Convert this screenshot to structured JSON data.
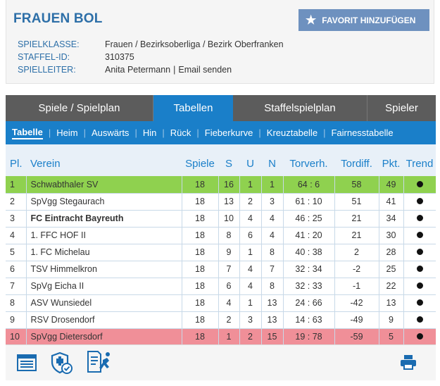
{
  "header": {
    "title": "FRAUEN BOL",
    "favorite_label": "FAVORIT HINZUFÜGEN",
    "favorite_icon": "star-icon",
    "meta": [
      {
        "key": "SPIELKLASSE:",
        "value": "Frauen / Bezirksoberliga / Bezirk Oberfranken"
      },
      {
        "key": "STAFFEL-ID:",
        "value": "310375"
      },
      {
        "key": "SPIELLEITER:",
        "value": "Anita Petermann",
        "separator": "|",
        "link": "Email senden"
      }
    ]
  },
  "tabs": [
    {
      "label": "Spiele / Spielplan",
      "active": false
    },
    {
      "label": "Tabellen",
      "active": true
    },
    {
      "label": "Staffelspielplan",
      "active": false
    },
    {
      "label": "Spieler",
      "active": false
    }
  ],
  "subnav": [
    {
      "label": "Tabelle",
      "active": true
    },
    {
      "label": "Heim"
    },
    {
      "label": "Auswärts"
    },
    {
      "label": "Hin"
    },
    {
      "label": "Rück"
    },
    {
      "label": "Fieberkurve"
    },
    {
      "label": "Kreuztabelle"
    },
    {
      "label": "Fairnesstabelle"
    }
  ],
  "subnav_divider": "|",
  "table": {
    "columns": [
      "Pl.",
      "Verein",
      "Spiele",
      "S",
      "U",
      "N",
      "Torverh.",
      "Tordiff.",
      "Pkt.",
      "Trend"
    ],
    "rows": [
      {
        "pl": "1",
        "club": "Schwabthaler SV",
        "games": "18",
        "s": "16",
        "u": "1",
        "n": "1",
        "goals": "64 : 6",
        "diff": "58",
        "pts": "49",
        "bold": false,
        "status": "top"
      },
      {
        "pl": "2",
        "club": "SpVgg Stegaurach",
        "games": "18",
        "s": "13",
        "u": "2",
        "n": "3",
        "goals": "61 : 10",
        "diff": "51",
        "pts": "41",
        "bold": false,
        "status": ""
      },
      {
        "pl": "3",
        "club": "FC Eintracht Bayreuth",
        "games": "18",
        "s": "10",
        "u": "4",
        "n": "4",
        "goals": "46 : 25",
        "diff": "21",
        "pts": "34",
        "bold": true,
        "status": ""
      },
      {
        "pl": "4",
        "club": "1. FFC HOF II",
        "games": "18",
        "s": "8",
        "u": "6",
        "n": "4",
        "goals": "41 : 20",
        "diff": "21",
        "pts": "30",
        "bold": false,
        "status": ""
      },
      {
        "pl": "5",
        "club": "1. FC Michelau",
        "games": "18",
        "s": "9",
        "u": "1",
        "n": "8",
        "goals": "40 : 38",
        "diff": "2",
        "pts": "28",
        "bold": false,
        "status": ""
      },
      {
        "pl": "6",
        "club": "TSV Himmelkron",
        "games": "18",
        "s": "7",
        "u": "4",
        "n": "7",
        "goals": "32 : 34",
        "diff": "-2",
        "pts": "25",
        "bold": false,
        "status": ""
      },
      {
        "pl": "7",
        "club": "SpVg Eicha II",
        "games": "18",
        "s": "6",
        "u": "4",
        "n": "8",
        "goals": "32 : 33",
        "diff": "-1",
        "pts": "22",
        "bold": false,
        "status": ""
      },
      {
        "pl": "8",
        "club": "ASV Wunsiedel",
        "games": "18",
        "s": "4",
        "u": "1",
        "n": "13",
        "goals": "24 : 66",
        "diff": "-42",
        "pts": "13",
        "bold": false,
        "status": ""
      },
      {
        "pl": "9",
        "club": "RSV Drosendorf",
        "games": "18",
        "s": "2",
        "u": "3",
        "n": "13",
        "goals": "14 : 63",
        "diff": "-49",
        "pts": "9",
        "bold": false,
        "status": ""
      },
      {
        "pl": "10",
        "club": "SpVgg Dietersdorf",
        "games": "18",
        "s": "1",
        "u": "2",
        "n": "15",
        "goals": "19 : 78",
        "diff": "-59",
        "pts": "5",
        "bold": false,
        "status": "bottom"
      }
    ]
  },
  "colors": {
    "accent": "#1a7fc9",
    "title": "#2d6fa8",
    "favorite_button": "#6e91bf",
    "tab_bar": "#5c5c5c",
    "promotion_row": "#8fd14f",
    "relegation_row": "#f08f98",
    "header_bg": "#e8f0f8"
  },
  "footer_icons": [
    "table-view-icon",
    "fair-play-shield-icon",
    "referee-report-icon",
    "print-icon"
  ]
}
